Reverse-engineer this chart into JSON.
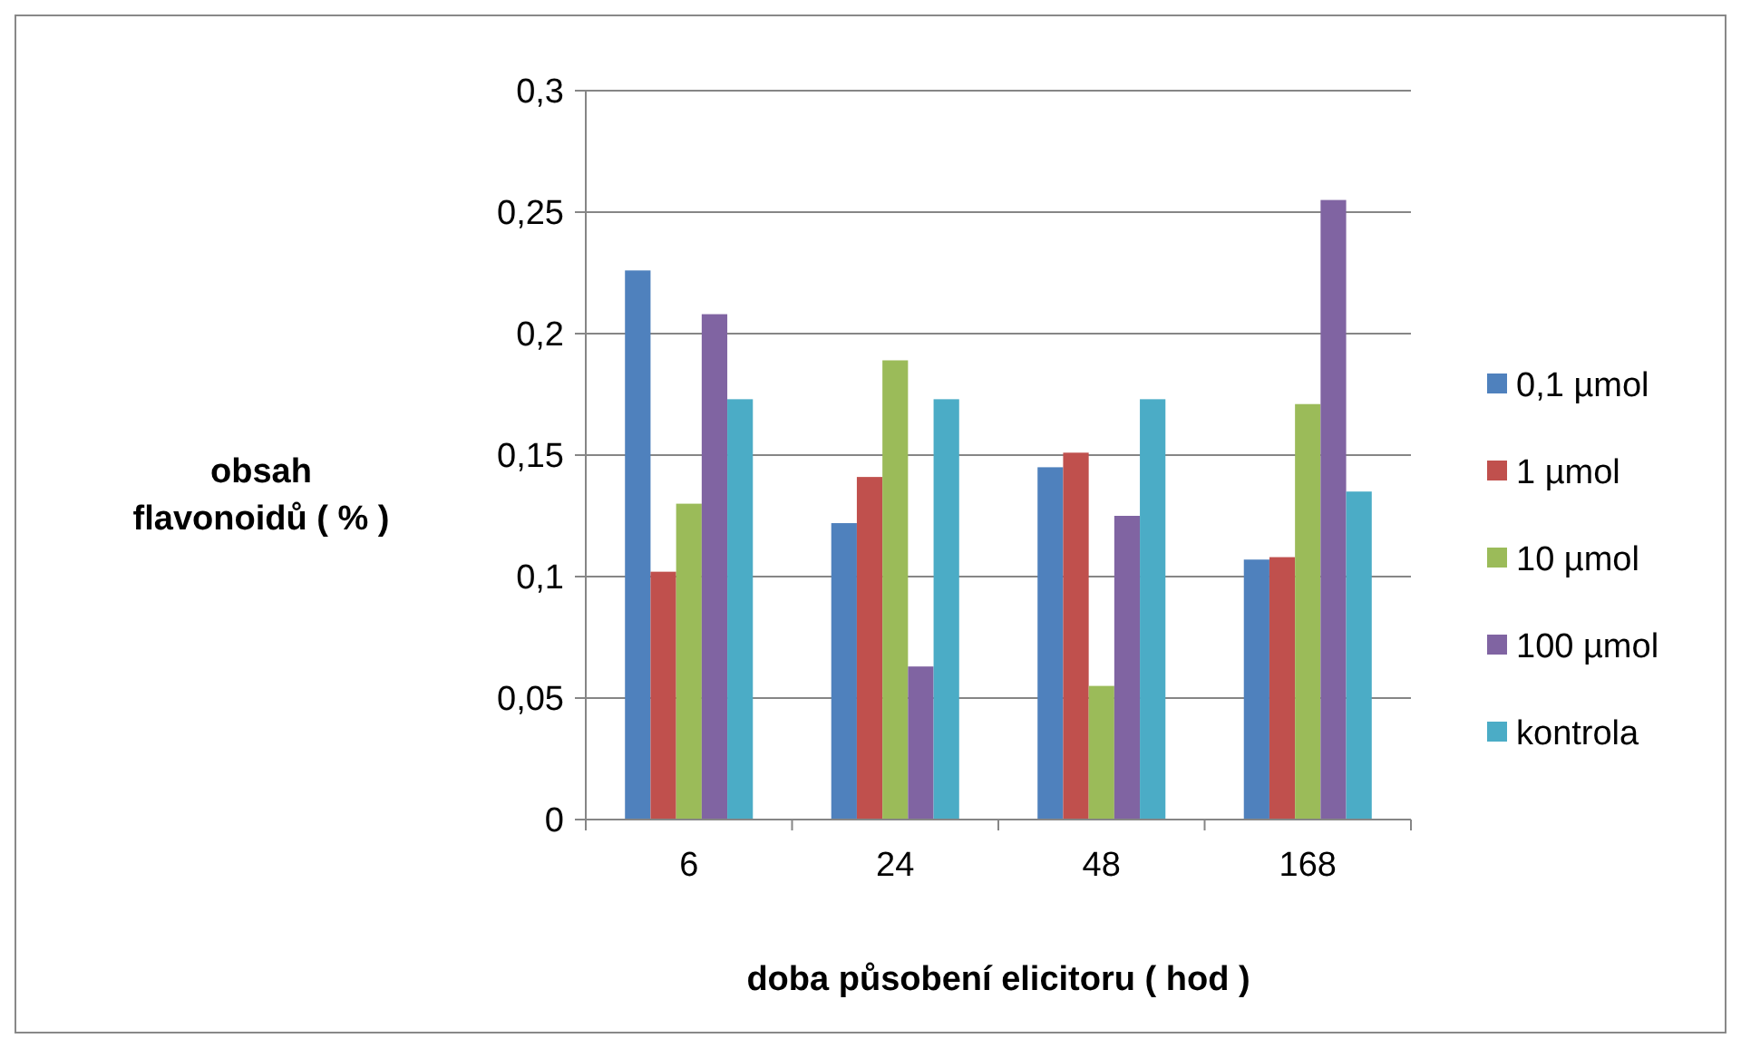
{
  "chart_data": {
    "type": "bar",
    "xlabel": "doba působení elicitoru ( hod )",
    "ylabel": "obsah flavonoidů ( % )",
    "categories": [
      "6",
      "24",
      "48",
      "168"
    ],
    "series": [
      {
        "name": "0,1  µmol",
        "color": "#4f81bd",
        "values": [
          0.226,
          0.122,
          0.145,
          0.107
        ]
      },
      {
        "name": "1  µmol",
        "color": "#c0504d",
        "values": [
          0.102,
          0.141,
          0.151,
          0.108
        ]
      },
      {
        "name": "10  µmol",
        "color": "#9bbb59",
        "values": [
          0.13,
          0.189,
          0.055,
          0.171
        ]
      },
      {
        "name": "100  µmol",
        "color": "#8064a2",
        "values": [
          0.208,
          0.063,
          0.125,
          0.255
        ]
      },
      {
        "name": "kontrola",
        "color": "#4bacc6",
        "values": [
          0.173,
          0.173,
          0.173,
          0.135
        ]
      }
    ],
    "ylim": [
      0,
      0.3
    ],
    "yticks": [
      0,
      {
        "value": 0.05,
        "label": "0,05"
      },
      {
        "value": 0.1,
        "label": "0,1"
      },
      {
        "value": 0.15,
        "label": "0,15"
      },
      {
        "value": 0.2,
        "label": "0,2"
      },
      {
        "value": 0.25,
        "label": "0,25"
      },
      {
        "value": 0.3,
        "label": "0,3"
      }
    ],
    "grid": "y",
    "legend": "right"
  }
}
